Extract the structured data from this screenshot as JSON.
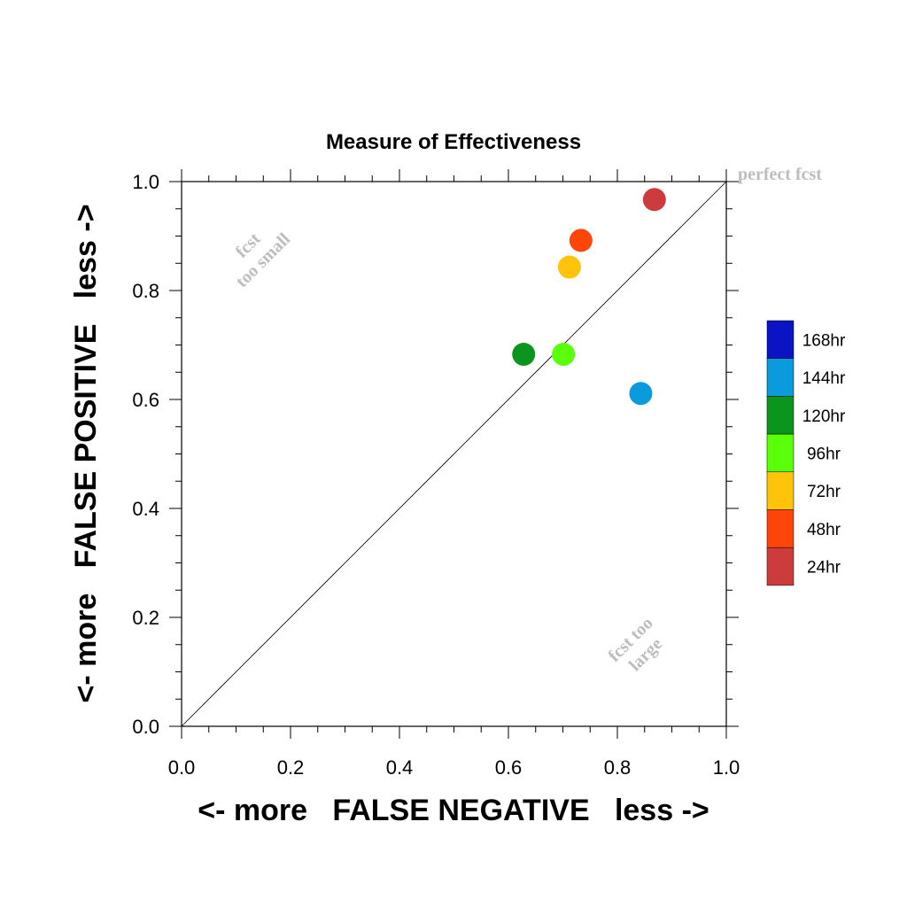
{
  "chart_data": {
    "type": "scatter",
    "title": "Measure of Effectiveness",
    "xlabel": "<- more   FALSE NEGATIVE   less ->",
    "ylabel": "<- more   FALSE POSITIVE   less ->",
    "xlim": [
      0.0,
      1.0
    ],
    "ylim": [
      0.0,
      1.0
    ],
    "x_ticks": [
      "0.0",
      "0.2",
      "0.4",
      "0.6",
      "0.8",
      "1.0"
    ],
    "y_ticks": [
      "0.0",
      "0.2",
      "0.4",
      "0.6",
      "0.8",
      "1.0"
    ],
    "grid": false,
    "reference_line": {
      "from": [
        0,
        0
      ],
      "to": [
        1,
        1
      ]
    },
    "annotations": {
      "perfect": "perfect fcst",
      "too_small_1": "fcst",
      "too_small_2": "too small",
      "too_large_1": "fcst too",
      "too_large_2": "large"
    },
    "legend_placement": "right",
    "series": [
      {
        "name": "168hr",
        "color": "#0a14c3",
        "points": []
      },
      {
        "name": "144hr",
        "color": "#0a9bdc",
        "points": [
          {
            "x": 0.843,
            "y": 0.611
          }
        ]
      },
      {
        "name": "120hr",
        "color": "#0a961e",
        "points": [
          {
            "x": 0.628,
            "y": 0.683
          }
        ]
      },
      {
        "name": "96hr",
        "color": "#5aff0a",
        "points": [
          {
            "x": 0.701,
            "y": 0.683
          }
        ]
      },
      {
        "name": "72hr",
        "color": "#ffc30a",
        "points": [
          {
            "x": 0.712,
            "y": 0.843
          }
        ]
      },
      {
        "name": "48hr",
        "color": "#ff460a",
        "points": [
          {
            "x": 0.733,
            "y": 0.892
          }
        ]
      },
      {
        "name": "24hr",
        "color": "#cd3c3c",
        "points": [
          {
            "x": 0.868,
            "y": 0.967
          }
        ]
      }
    ]
  }
}
